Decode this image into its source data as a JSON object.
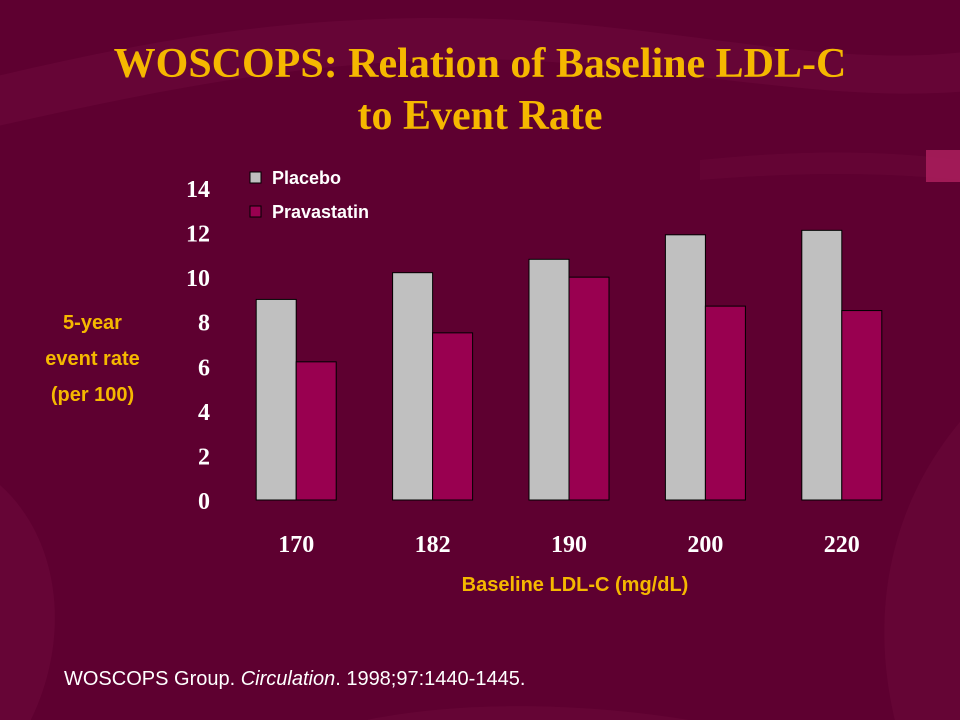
{
  "slide": {
    "title_lines": [
      "WOSCOPS: Relation of Baseline LDL-C",
      "to Event Rate"
    ],
    "citation": {
      "authors": "WOSCOPS Group.",
      "journal": "Circulation",
      "details": ". 1998;97:1440-1445."
    },
    "colors": {
      "background": "#5e0030",
      "title": "#f5b800",
      "placebo": "#c0c0c0",
      "pravastatin": "#990050",
      "tick_label": "#ffffff"
    }
  },
  "chart_data": {
    "type": "bar",
    "categories": [
      "170",
      "182",
      "190",
      "200",
      "220"
    ],
    "series": [
      {
        "name": "Placebo",
        "values": [
          9.0,
          10.2,
          10.8,
          11.9,
          12.1
        ]
      },
      {
        "name": "Pravastatin",
        "values": [
          6.2,
          7.5,
          10.0,
          8.7,
          8.5
        ]
      }
    ],
    "ylabel_lines": [
      "5-year",
      "event rate",
      "(per 100)"
    ],
    "xlabel": "Baseline LDL-C (mg/dL)",
    "ylim": [
      0,
      14
    ],
    "yticks": [
      "0",
      "2",
      "4",
      "6",
      "8",
      "10",
      "12",
      "14"
    ],
    "legend_position": "top-left",
    "grid": false
  }
}
